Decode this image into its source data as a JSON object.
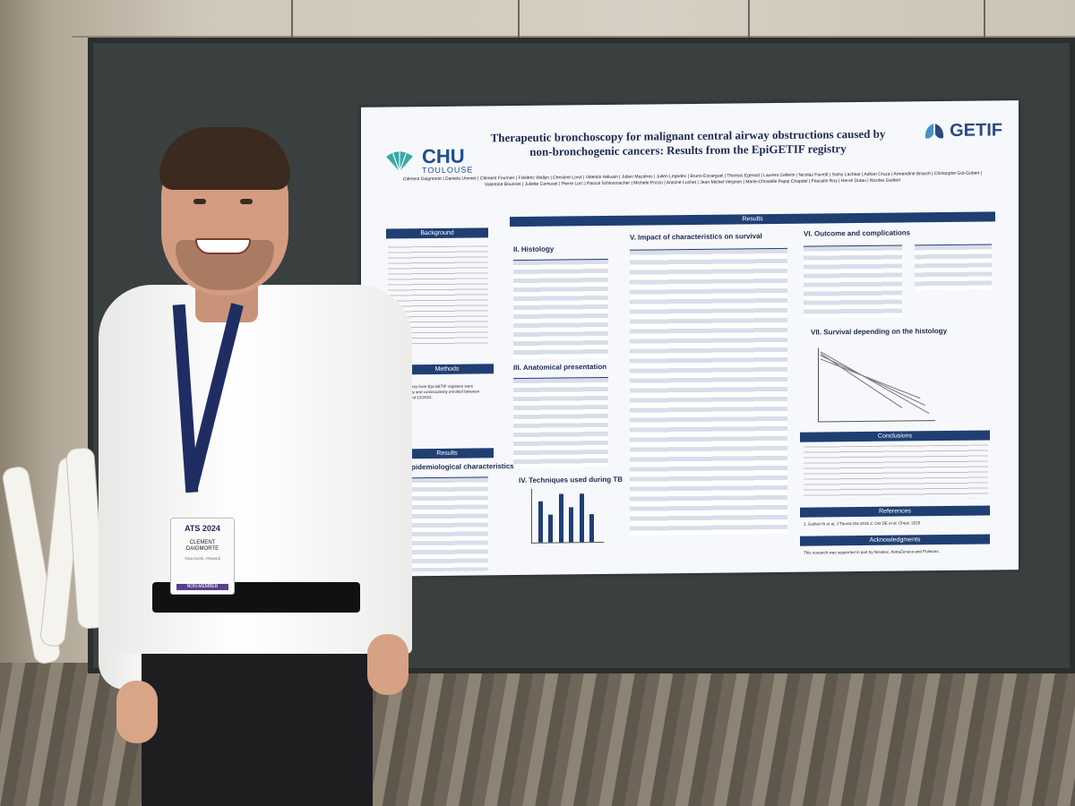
{
  "poster": {
    "hospital_logo": "CHU",
    "hospital_logo_sub": "TOULOUSE",
    "title": "Therapeutic bronchoscopy for malignant central airway obstructions caused by non-bronchogenic cancers: Results from the EpiGETIF registry",
    "society_logo": "GETIF",
    "authors": "Clément Daigmorte | Daniela Ummer | Clément Fournier | Frédéric Wallyn | Christine Lorut | Valentin Héluain | Julien Mazières | Julien Legodec | Bruno Escarguel | Thomas Egenod | Laurent Cellerin | Nicolas Favrolt | Samy Lachkar | Adrian Cruza | Armandine Brauch | Christophe Got-Gobert | Valentine Bourinet | Juliette Camuset | Pierre Loïc | Pascal Schlosmacher | Michele Porzio | Antoine Luchet | Jean-Michel Vergnon | Marie-Christelle Pajop Chapdal | Pascalin Roy | Hervé Dutau | Nicolas Guibert",
    "sections": {
      "background": "Background",
      "methods": "Methods",
      "results": "Results",
      "epi": "I. Epidemiological characteristics",
      "histology": "II. Histology",
      "anatomical": "III. Anatomical presentation",
      "techniques": "IV. Techniques used during TB",
      "impact": "V. Impact of characteristics on survival",
      "outcome": "VI. Outcome and complications",
      "survival": "VII. Survival depending on the histology",
      "conclusions": "Conclusions",
      "references": "References",
      "acknowledgments": "Acknowledgments"
    },
    "methods_text": "2389 patients from Epi-GETIF registery were respectively and consecutively enrolled between 01/2019 and 12/2022.",
    "references_text": "1. Guibert N et al, J Thorac Dis 2016      2. Ost DE et al, Chest. 2015",
    "acknowledgments_text": "This research was supported in part by Novatec, AstraZeneca and Pulmonx."
  },
  "badge": {
    "event": "ATS 2024",
    "first_name": "CLEMENT",
    "last_name": "DAIGMORTE",
    "location": "TOULOUSE, FRANCE",
    "member_type": "NON-MEMBER"
  },
  "techniques_chart": {
    "type": "bar",
    "values": [
      6,
      4,
      7,
      5,
      7,
      4
    ]
  }
}
